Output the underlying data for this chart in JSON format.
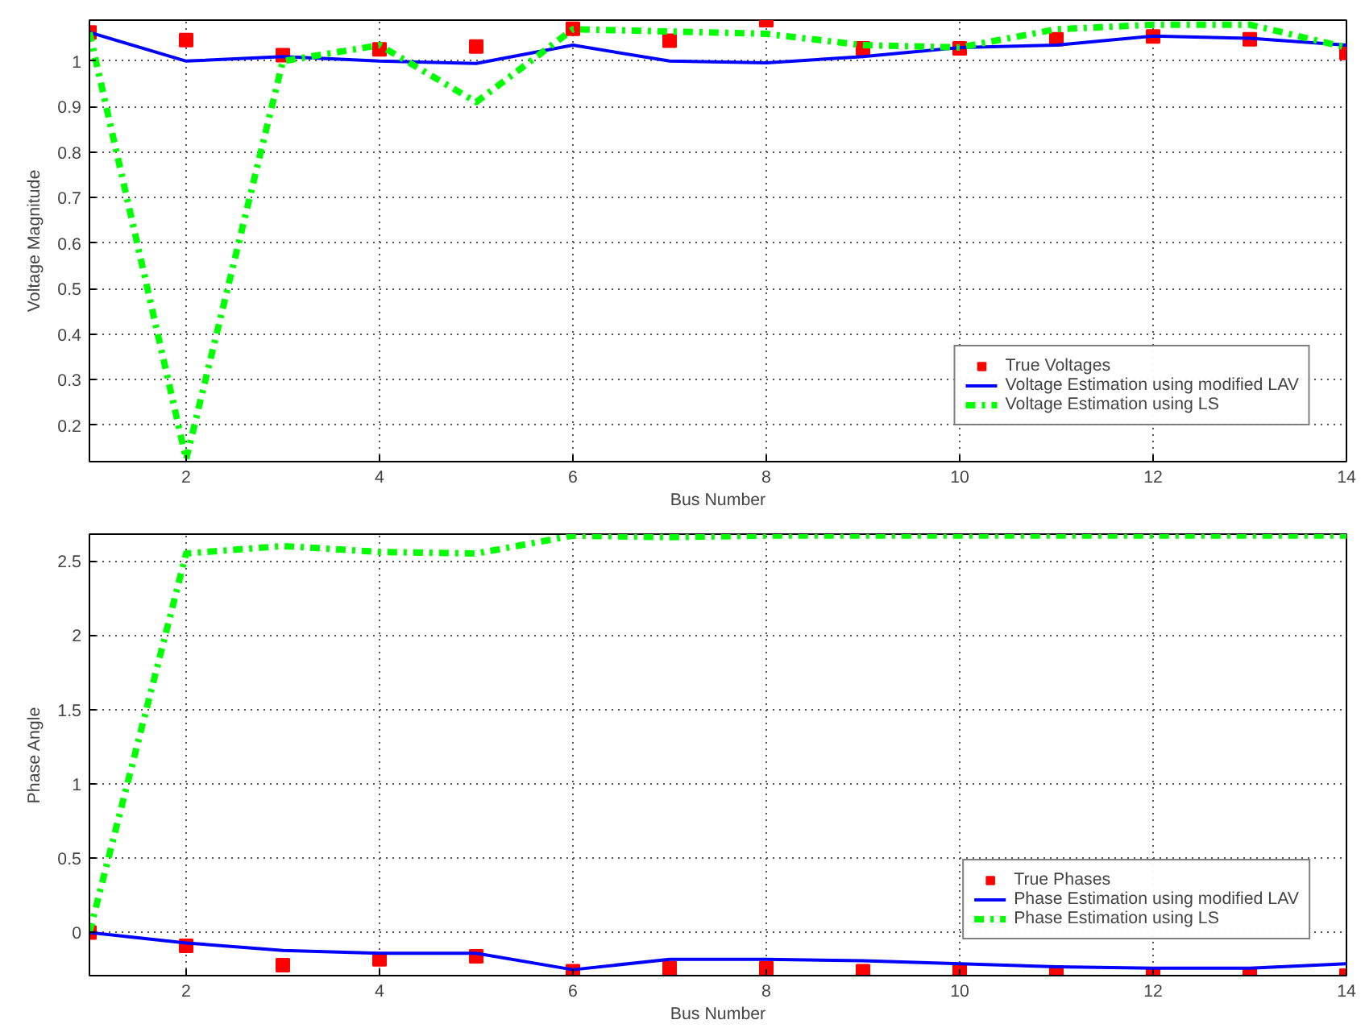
{
  "chart_data": [
    {
      "type": "line",
      "xlabel": "Bus Number",
      "ylabel": "Voltage Magnitude",
      "x": [
        1,
        2,
        3,
        4,
        5,
        6,
        7,
        8,
        9,
        10,
        11,
        12,
        13,
        14
      ],
      "xlim": [
        1,
        14
      ],
      "xticks": [
        2,
        4,
        6,
        8,
        10,
        12,
        14
      ],
      "ylim": [
        0.12,
        1.09
      ],
      "yticks": [
        0.2,
        0.3,
        0.4,
        0.5,
        0.6,
        0.7,
        0.8,
        0.9,
        1
      ],
      "grid": true,
      "legend": "bottom right",
      "series": [
        {
          "name": "True Voltages",
          "type": "scatter",
          "marker": "square",
          "color": "#ff0000",
          "values": [
            1.063,
            1.046,
            1.013,
            1.026,
            1.032,
            1.071,
            1.045,
            1.09,
            1.028,
            1.028,
            1.048,
            1.054,
            1.048,
            1.018
          ]
        },
        {
          "name": "Voltage Estimation using modified LAV",
          "line_style": "solid",
          "color": "#0000ff",
          "values": [
            1.063,
            1.0,
            1.01,
            1.0,
            0.995,
            1.035,
            1.0,
            0.996,
            1.01,
            1.03,
            1.035,
            1.055,
            1.05,
            1.035
          ]
        },
        {
          "name": "Voltage Estimation using LS",
          "line_style": "dashdot",
          "color": "#00ff00",
          "values": [
            1.063,
            0.125,
            1.0,
            1.035,
            0.91,
            1.07,
            1.065,
            1.06,
            1.035,
            1.03,
            1.07,
            1.08,
            1.08,
            1.03
          ]
        }
      ]
    },
    {
      "type": "line",
      "xlabel": "Bus Number",
      "ylabel": "Phase Angle",
      "x": [
        1,
        2,
        3,
        4,
        5,
        6,
        7,
        8,
        9,
        10,
        11,
        12,
        13,
        14
      ],
      "xlim": [
        1,
        14
      ],
      "xticks": [
        2,
        4,
        6,
        8,
        10,
        12,
        14
      ],
      "ylim": [
        -0.29,
        2.68
      ],
      "yticks": [
        0,
        0.5,
        1,
        1.5,
        2,
        2.5
      ],
      "grid": true,
      "legend": "bottom right",
      "series": [
        {
          "name": "True Phases",
          "type": "scatter",
          "marker": "square",
          "color": "#ff0000",
          "values": [
            0,
            -0.09,
            -0.22,
            -0.18,
            -0.16,
            -0.26,
            -0.24,
            -0.24,
            -0.26,
            -0.26,
            -0.27,
            -0.28,
            -0.28,
            -0.29
          ]
        },
        {
          "name": "Phase Estimation using modified LAV",
          "line_style": "solid",
          "color": "#0000ff",
          "values": [
            0,
            -0.07,
            -0.12,
            -0.14,
            -0.14,
            -0.25,
            -0.18,
            -0.18,
            -0.19,
            -0.21,
            -0.23,
            -0.24,
            -0.24,
            -0.21
          ]
        },
        {
          "name": "Phase Estimation using LS",
          "line_style": "dashdot",
          "color": "#00ff00",
          "values": [
            0,
            2.55,
            2.6,
            2.56,
            2.55,
            2.67,
            2.66,
            2.67,
            2.67,
            2.67,
            2.67,
            2.67,
            2.67,
            2.67
          ]
        }
      ]
    }
  ]
}
